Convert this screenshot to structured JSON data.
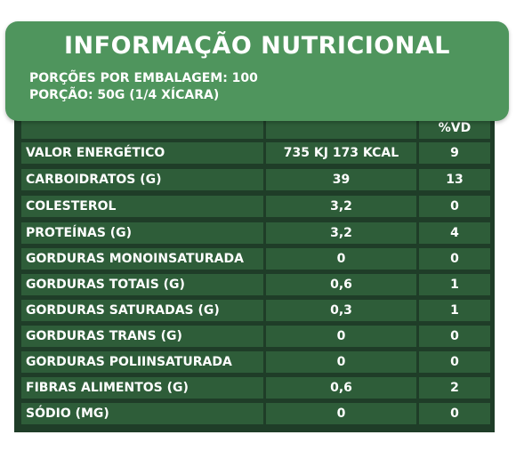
{
  "header": {
    "title": "INFORMAÇÃO NUTRICIONAL",
    "servings_per_package": "PORÇÕES POR EMBALAGEM: 100",
    "serving_size": "PORÇÃO: 50G (1/4 XÍCARA)"
  },
  "table": {
    "columns": [
      "",
      "",
      "%VD"
    ],
    "rows": [
      {
        "name": "VALOR ENERGÉTICO",
        "qty": "735 KJ 173 KCAL",
        "vd": "9"
      },
      {
        "name": "CARBOIDRATOS (G)",
        "qty": "39",
        "vd": "13"
      },
      {
        "name": "COLESTEROL",
        "qty": "3,2",
        "vd": "0"
      },
      {
        "name": "PROTEÍNAS (G)",
        "qty": "3,2",
        "vd": "4"
      },
      {
        "name": "GORDURAS MONOINSATURADA",
        "qty": "0",
        "vd": "0"
      },
      {
        "name": "GORDURAS TOTAIS (G)",
        "qty": "0,6",
        "vd": "1"
      },
      {
        "name": "GORDURAS SATURADAS (G)",
        "qty": "0,3",
        "vd": "1"
      },
      {
        "name": "GORDURAS TRANS (G)",
        "qty": "0",
        "vd": "0"
      },
      {
        "name": "GORDURAS POLIINSATURADA",
        "qty": "0",
        "vd": "0"
      },
      {
        "name": "FIBRAS ALIMENTOS (G)",
        "qty": "0,6",
        "vd": "2"
      },
      {
        "name": "SÓDIO (MG)",
        "qty": "0",
        "vd": "0"
      }
    ]
  },
  "colors": {
    "header_green": "#4f955d",
    "cell_green": "#2e5d39",
    "border_dark": "#1f3d28"
  }
}
